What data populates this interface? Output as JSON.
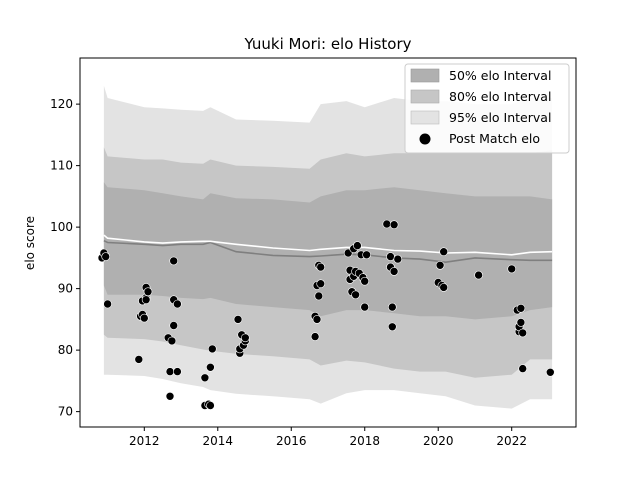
{
  "chart_data": {
    "type": "scatter",
    "title": "Yuuki Mori: elo History",
    "xlabel": "",
    "ylabel": "elo score",
    "xlim": [
      2010.25,
      2023.75
    ],
    "ylim": [
      67.5,
      127.5
    ],
    "x_ticks": [
      2012,
      2014,
      2016,
      2018,
      2020,
      2022
    ],
    "x_tick_labels": [
      "2012",
      "2014",
      "2016",
      "2018",
      "2020",
      "2022"
    ],
    "y_ticks": [
      70,
      80,
      90,
      100,
      110,
      120
    ],
    "y_tick_labels": [
      "70",
      "80",
      "90",
      "100",
      "110",
      "120"
    ],
    "grid": false,
    "legend_position": "top-right",
    "legend": [
      {
        "label": "50% elo Interval",
        "kind": "band",
        "color": "#b0b0b0"
      },
      {
        "label": "80% elo Interval",
        "kind": "band",
        "color": "#c6c6c6"
      },
      {
        "label": "95% elo Interval",
        "kind": "band",
        "color": "#e3e3e3"
      },
      {
        "label": "Post Match elo",
        "kind": "point",
        "color": "#000000"
      }
    ],
    "colors": {
      "band50": "#b0b0b0",
      "band80": "#c6c6c6",
      "band95": "#e3e3e3",
      "mean_line": "#7f7f7f",
      "median_line": "#ffffff",
      "points": "#000000"
    },
    "x": [
      2010.9,
      2011.0,
      2012.0,
      2012.5,
      2013.0,
      2013.6,
      2013.8,
      2014.5,
      2015.5,
      2016.5,
      2016.8,
      2017.5,
      2018.0,
      2018.8,
      2019.5,
      2020.2,
      2021.0,
      2022.0,
      2022.5,
      2023.1
    ],
    "band95_upper": [
      123.0,
      121.0,
      119.5,
      119.3,
      119.1,
      118.9,
      119.5,
      117.5,
      117.3,
      117.0,
      120.0,
      120.5,
      119.5,
      121.0,
      120.5,
      120.5,
      120.0,
      120.0,
      121.0,
      121.0
    ],
    "band95_lower": [
      76.0,
      76.0,
      75.8,
      75.3,
      74.6,
      74.0,
      73.5,
      72.9,
      72.5,
      72.0,
      71.3,
      73.0,
      73.5,
      73.5,
      73.0,
      72.5,
      71.0,
      70.5,
      72.0,
      72.0
    ],
    "band80_upper": [
      113.0,
      111.5,
      111.0,
      111.0,
      110.5,
      110.3,
      111.0,
      110.0,
      109.8,
      109.5,
      111.0,
      112.0,
      111.5,
      112.0,
      112.0,
      112.0,
      112.0,
      112.0,
      112.0,
      112.5
    ],
    "band80_lower": [
      82.5,
      82.0,
      81.8,
      81.4,
      80.8,
      80.1,
      79.9,
      79.4,
      79.0,
      78.5,
      77.5,
      78.3,
      78.0,
      77.0,
      76.5,
      76.5,
      75.5,
      76.0,
      78.5,
      78.5
    ],
    "band50_upper": [
      107.3,
      106.5,
      106.0,
      105.5,
      105.0,
      104.5,
      105.5,
      104.7,
      104.5,
      104.0,
      105.0,
      106.0,
      106.0,
      106.5,
      106.0,
      105.5,
      105.0,
      105.0,
      105.0,
      104.5
    ],
    "band50_lower": [
      90.5,
      89.0,
      89.0,
      88.8,
      88.5,
      88.3,
      88.5,
      87.5,
      87.0,
      86.5,
      85.5,
      86.5,
      86.5,
      86.0,
      85.5,
      85.5,
      85.0,
      85.5,
      86.5,
      87.0
    ],
    "mean_line": [
      97.8,
      97.5,
      97.2,
      97.0,
      97.2,
      97.2,
      97.5,
      96.0,
      95.4,
      95.2,
      95.3,
      95.6,
      95.5,
      95.0,
      94.8,
      94.3,
      95.0,
      94.7,
      94.6,
      94.6
    ],
    "median_line": [
      98.7,
      98.2,
      97.6,
      97.4,
      97.6,
      97.7,
      97.7,
      97.2,
      96.6,
      96.2,
      96.4,
      96.7,
      96.7,
      96.2,
      96.1,
      95.8,
      95.9,
      95.5,
      95.9,
      96.0
    ],
    "points": [
      [
        2010.85,
        95.0
      ],
      [
        2010.9,
        95.8
      ],
      [
        2010.95,
        95.2
      ],
      [
        2011.0,
        87.5
      ],
      [
        2011.85,
        78.5
      ],
      [
        2011.9,
        85.5
      ],
      [
        2011.95,
        85.8
      ],
      [
        2011.95,
        88.0
      ],
      [
        2012.0,
        85.2
      ],
      [
        2012.05,
        88.5
      ],
      [
        2012.05,
        90.2
      ],
      [
        2012.1,
        89.5
      ],
      [
        2012.05,
        88.2
      ],
      [
        2012.65,
        82.0
      ],
      [
        2012.7,
        76.5
      ],
      [
        2012.7,
        72.5
      ],
      [
        2012.75,
        81.5
      ],
      [
        2012.8,
        84.0
      ],
      [
        2012.8,
        88.2
      ],
      [
        2012.8,
        94.5
      ],
      [
        2012.9,
        87.5
      ],
      [
        2012.9,
        76.5
      ],
      [
        2013.65,
        75.5
      ],
      [
        2013.65,
        71.0
      ],
      [
        2013.75,
        71.2
      ],
      [
        2013.8,
        71.0
      ],
      [
        2013.8,
        77.2
      ],
      [
        2013.85,
        80.2
      ],
      [
        2014.55,
        85.0
      ],
      [
        2014.6,
        79.5
      ],
      [
        2014.6,
        80.2
      ],
      [
        2014.65,
        82.5
      ],
      [
        2014.7,
        80.8
      ],
      [
        2014.75,
        81.5
      ],
      [
        2014.75,
        82.0
      ],
      [
        2016.65,
        82.2
      ],
      [
        2016.65,
        85.5
      ],
      [
        2016.7,
        85.0
      ],
      [
        2016.7,
        90.5
      ],
      [
        2016.75,
        88.8
      ],
      [
        2016.75,
        93.8
      ],
      [
        2016.8,
        93.5
      ],
      [
        2016.8,
        90.8
      ],
      [
        2017.55,
        95.8
      ],
      [
        2017.6,
        91.5
      ],
      [
        2017.6,
        93.0
      ],
      [
        2017.65,
        89.5
      ],
      [
        2017.7,
        96.5
      ],
      [
        2017.7,
        92.0
      ],
      [
        2017.75,
        89.0
      ],
      [
        2017.75,
        92.8
      ],
      [
        2017.8,
        97.0
      ],
      [
        2017.85,
        92.5
      ],
      [
        2017.9,
        95.5
      ],
      [
        2017.95,
        91.8
      ],
      [
        2018.0,
        87.0
      ],
      [
        2018.0,
        91.2
      ],
      [
        2018.05,
        95.5
      ],
      [
        2018.6,
        100.5
      ],
      [
        2018.7,
        95.2
      ],
      [
        2018.7,
        93.5
      ],
      [
        2018.75,
        87.0
      ],
      [
        2018.75,
        83.8
      ],
      [
        2018.8,
        100.4
      ],
      [
        2018.8,
        92.8
      ],
      [
        2018.9,
        94.8
      ],
      [
        2020.0,
        91.0
      ],
      [
        2020.05,
        93.8
      ],
      [
        2020.1,
        90.5
      ],
      [
        2020.15,
        96.0
      ],
      [
        2020.15,
        90.2
      ],
      [
        2021.1,
        92.2
      ],
      [
        2022.0,
        93.2
      ],
      [
        2022.15,
        86.5
      ],
      [
        2022.2,
        83.0
      ],
      [
        2022.2,
        83.8
      ],
      [
        2022.25,
        86.8
      ],
      [
        2022.25,
        84.5
      ],
      [
        2022.3,
        82.8
      ],
      [
        2022.3,
        77.0
      ],
      [
        2023.05,
        76.4
      ]
    ]
  }
}
